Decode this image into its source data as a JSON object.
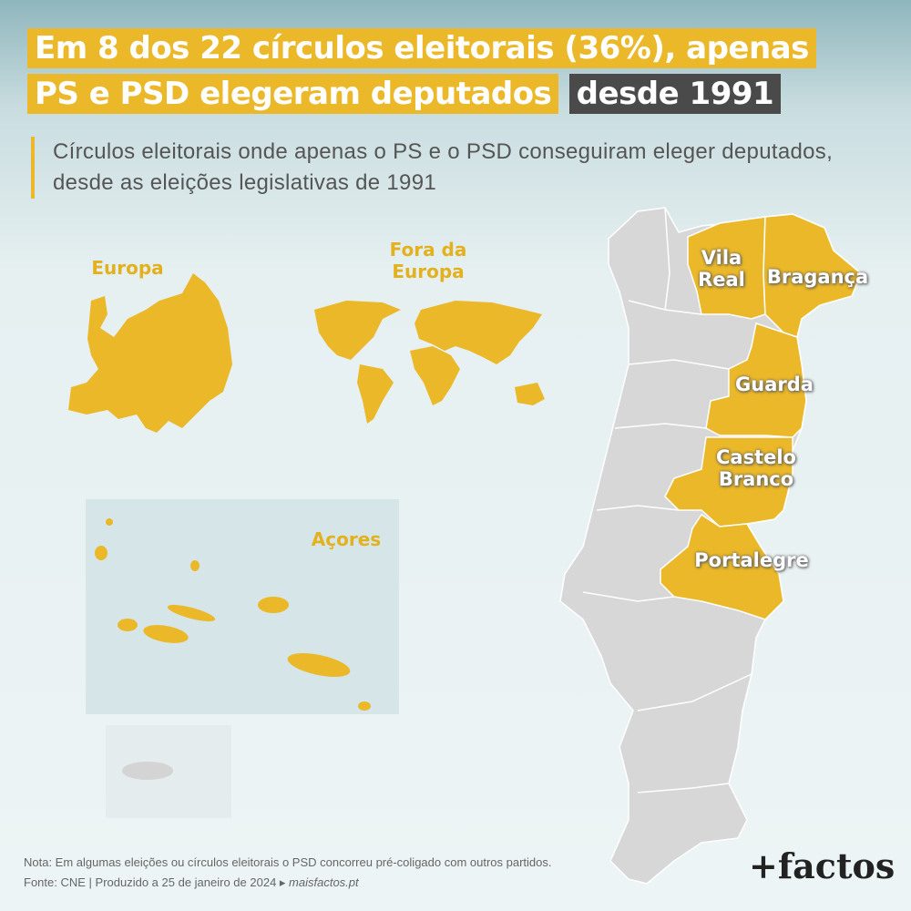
{
  "header": {
    "title_line1": "Em 8 dos 22 círculos eleitorais (36%), apenas",
    "title_line2": "PS e PSD elegeram deputados",
    "title_rest": "desde 1991",
    "subtitle_line1": "Círculos eleitorais onde apenas o PS e o PSD conseguiram eleger deputados,",
    "subtitle_line2": "desde as eleições legislativas de 1991"
  },
  "map": {
    "labels": {
      "europe": "Europa",
      "outside_europe": "Fora da Europa",
      "azores": "Açores"
    },
    "districts": [
      "Vila Real",
      "Bragança",
      "Guarda",
      "Castelo Branco",
      "Portalegre"
    ]
  },
  "footer": {
    "note": "Nota: Em algumas eleições ou círculos eleitorais o PSD concorreu pré-coligado com outros partidos.",
    "source": "Fonte: CNE",
    "produced": "Produzido a 25 de janeiro de 2024",
    "site": "maisfactos.pt",
    "logo": "+factos"
  }
}
